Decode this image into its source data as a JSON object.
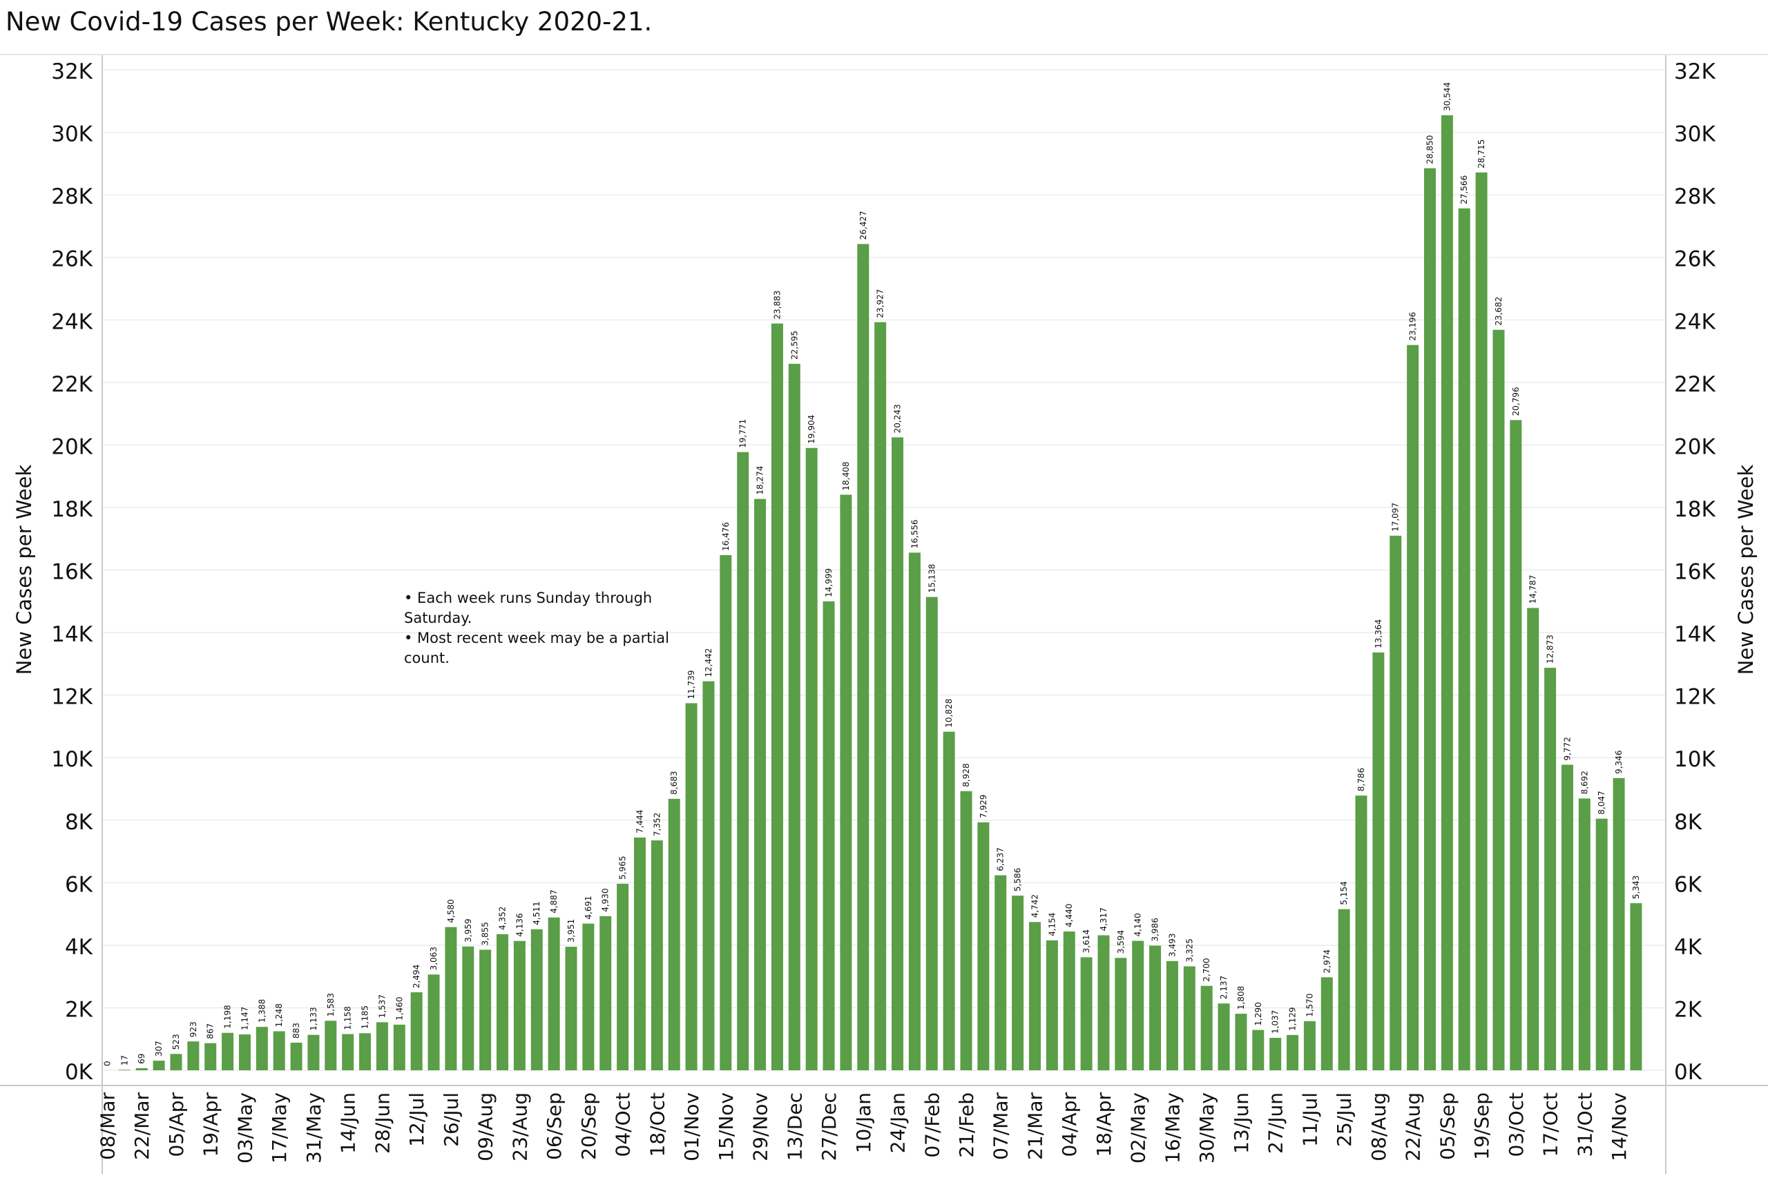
{
  "title": "New Covid-19 Cases per Week:  Kentucky 2020-21.",
  "notes": [
    "• Each week runs Sunday through\nSaturday.",
    "• Most recent week may be a partial\ncount."
  ],
  "colors": {
    "bar": "#5a9e47",
    "grid": "#ececec",
    "axis": "#c8c8c8",
    "text": "#111111"
  },
  "chart_data": {
    "type": "bar",
    "title": "New Covid-19 Cases per Week:  Kentucky 2020-21.",
    "ylabel": "New Cases per Week",
    "ylabel_right": "New Cases per Week",
    "xlabel": "",
    "ylim": [
      0,
      32000
    ],
    "yticks": [
      0,
      2000,
      4000,
      6000,
      8000,
      10000,
      12000,
      14000,
      16000,
      18000,
      20000,
      22000,
      24000,
      26000,
      28000,
      30000,
      32000
    ],
    "ytick_labels": [
      "0K",
      "2K",
      "4K",
      "6K",
      "8K",
      "10K",
      "12K",
      "14K",
      "16K",
      "18K",
      "20K",
      "22K",
      "24K",
      "26K",
      "28K",
      "30K",
      "32K"
    ],
    "grid": true,
    "x_tick_labels": [
      "08/Mar",
      "22/Mar",
      "05/Apr",
      "19/Apr",
      "03/May",
      "17/May",
      "31/May",
      "14/Jun",
      "28/Jun",
      "12/Jul",
      "26/Jul",
      "09/Aug",
      "23/Aug",
      "06/Sep",
      "20/Sep",
      "04/Oct",
      "18/Oct",
      "01/Nov",
      "15/Nov",
      "29/Nov",
      "13/Dec",
      "27/Dec",
      "10/Jan",
      "24/Jan",
      "07/Feb",
      "21/Feb",
      "07/Mar",
      "21/Mar",
      "04/Apr",
      "18/Apr",
      "02/May",
      "16/May",
      "30/May",
      "13/Jun",
      "27/Jun",
      "11/Jul",
      "25/Jul",
      "08/Aug",
      "22/Aug",
      "05/Sep",
      "19/Sep",
      "03/Oct",
      "17/Oct",
      "31/Oct",
      "14/Nov"
    ],
    "values": [
      0,
      17,
      69,
      307,
      523,
      923,
      867,
      1198,
      1147,
      1388,
      1248,
      883,
      1133,
      1583,
      1158,
      1185,
      1537,
      1460,
      2494,
      3063,
      4580,
      3959,
      3855,
      4352,
      4136,
      4511,
      4887,
      3951,
      4691,
      4930,
      5965,
      7444,
      7352,
      8683,
      11739,
      12442,
      16476,
      19771,
      18274,
      23883,
      22595,
      19904,
      14999,
      18408,
      26427,
      23927,
      20243,
      16556,
      15138,
      10828,
      8928,
      7929,
      6237,
      5586,
      4742,
      4154,
      4440,
      3614,
      4317,
      3594,
      4140,
      3986,
      3493,
      3325,
      2700,
      2137,
      1808,
      1290,
      1037,
      1129,
      1570,
      2974,
      5154,
      8786,
      13364,
      17097,
      23196,
      28850,
      30544,
      27566,
      28715,
      23682,
      20796,
      14787,
      12873,
      9772,
      8692,
      8047,
      9346,
      5343
    ],
    "value_labels": [
      "0",
      "17",
      "69",
      "307",
      "523",
      "923",
      "867",
      "1,198",
      "1,147",
      "1,388",
      "1,248",
      "883",
      "1,133",
      "1,583",
      "1,158",
      "1,185",
      "1,537",
      "1,460",
      "2,494",
      "3,063",
      "4,580",
      "3,959",
      "3,855",
      "4,352",
      "4,136",
      "4,511",
      "4,887",
      "3,951",
      "4,691",
      "4,930",
      "5,965",
      "7,444",
      "7,352",
      "8,683",
      "11,739",
      "12,442",
      "16,476",
      "19,771",
      "18,274",
      "23,883",
      "22,595",
      "19,904",
      "14,999",
      "18,408",
      "26,427",
      "23,927",
      "20,243",
      "16,556",
      "15,138",
      "10,828",
      "8,928",
      "7,929",
      "6,237",
      "5,586",
      "4,742",
      "4,154",
      "4,440",
      "3,614",
      "4,317",
      "3,594",
      "4,140",
      "3,986",
      "3,493",
      "3,325",
      "2,700",
      "2,137",
      "1,808",
      "1,290",
      "1,037",
      "1,129",
      "1,570",
      "2,974",
      "5,154",
      "8,786",
      "13,364",
      "17,097",
      "23,196",
      "28,850",
      "30,544",
      "27,566",
      "28,715",
      "23,682",
      "20,796",
      "14,787",
      "12,873",
      "9,772",
      "8,692",
      "8,047",
      "9,346",
      "5,343"
    ]
  }
}
